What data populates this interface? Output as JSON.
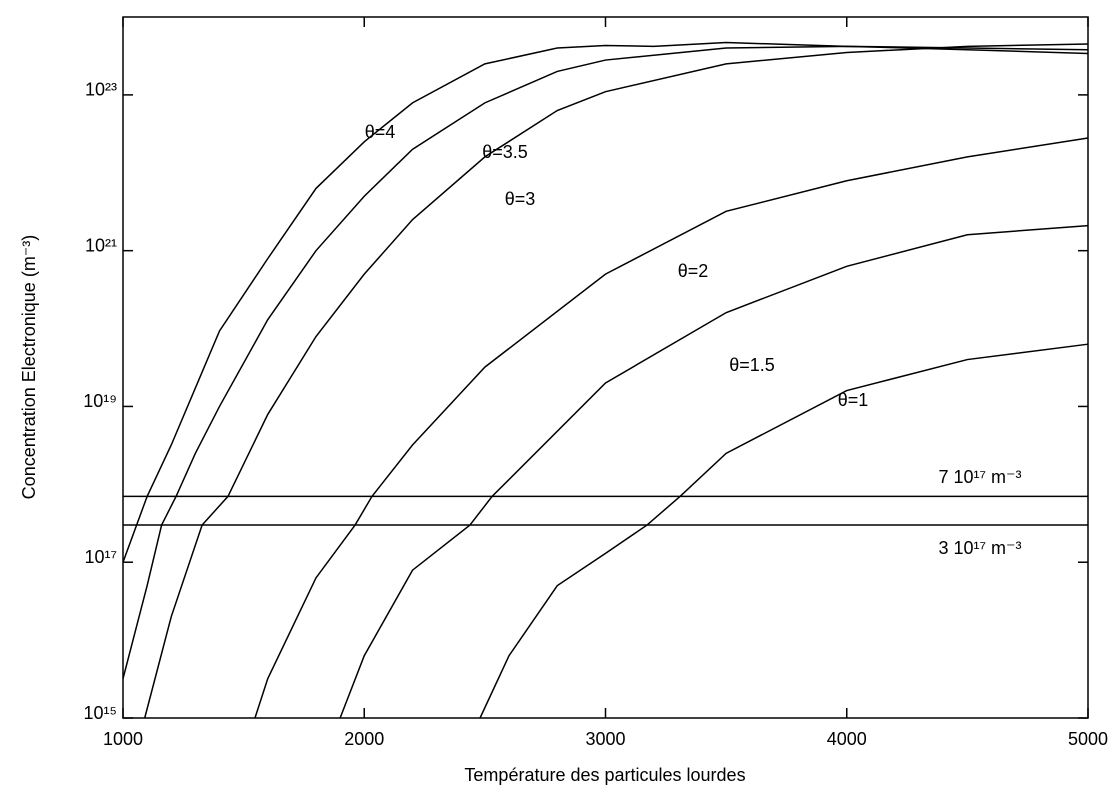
{
  "chart_data": {
    "type": "line",
    "xlabel": "Température des particules lourdes",
    "ylabel": "Concentration Electronique  (m⁻³)",
    "ylog": true,
    "xlim": [
      1000,
      5000
    ],
    "xticks": [
      1000,
      2000,
      3000,
      4000,
      5000
    ],
    "ylim": [
      1000000000000000.0,
      1e+24
    ],
    "yticks": [
      {
        "value": 1000000000000000.0,
        "label": "10¹⁵"
      },
      {
        "value": 1e+17,
        "label": "10¹⁷"
      },
      {
        "value": 1e+19,
        "label": "10¹⁹"
      },
      {
        "value": 1e+21,
        "label": "10²¹"
      },
      {
        "value": 1e+23,
        "label": "10²³"
      }
    ],
    "color": "#000000",
    "series": [
      {
        "name": "θ=4",
        "x": [
          1000,
          1100,
          1200,
          1400,
          1600,
          1800,
          2000,
          2200,
          2500,
          2800,
          3000,
          3200,
          3500,
          4000,
          4500,
          5000
        ],
        "values": [
          1e+17,
          7e+17,
          3.2e+18,
          9.3e+19,
          7.9e+20,
          6.3e+21,
          2.5e+22,
          7.9e+22,
          2.5e+23,
          4e+23,
          4.3e+23,
          4.2e+23,
          4.7e+23,
          4.2e+23,
          3.8e+23,
          3.4e+23
        ]
      },
      {
        "name": "θ=3.5",
        "x": [
          1000,
          1100,
          1160,
          1220,
          1300,
          1400,
          1600,
          1800,
          2000,
          2200,
          2500,
          2800,
          3000,
          3500,
          4000,
          4500,
          5000
        ],
        "values": [
          3200000000000000.0,
          5e+16,
          3e+17,
          7e+17,
          2.5e+18,
          1e+19,
          1.3e+20,
          1e+21,
          5e+21,
          2e+22,
          7.9e+22,
          2e+23,
          2.8e+23,
          4e+23,
          4.2e+23,
          4e+23,
          3.8e+23
        ]
      },
      {
        "name": "θ=3",
        "x": [
          1090,
          1200,
          1328,
          1435,
          1600,
          1800,
          2000,
          2200,
          2500,
          2800,
          3000,
          3500,
          4000,
          4500,
          5000
        ],
        "values": [
          1000000000000000.0,
          2e+16,
          3e+17,
          7e+17,
          7.9e+18,
          7.9e+19,
          5e+20,
          2.5e+21,
          1.6e+22,
          6.3e+22,
          1.1e+23,
          2.5e+23,
          3.5e+23,
          4.2e+23,
          4.5e+23
        ]
      },
      {
        "name": "θ=2",
        "x": [
          1547,
          1600,
          1800,
          1962,
          2032,
          2200,
          2500,
          3000,
          3500,
          4000,
          4500,
          5000
        ],
        "values": [
          1000000000000000.0,
          3200000000000000.0,
          6.3e+16,
          3e+17,
          7e+17,
          3.2e+18,
          3.2e+19,
          5e+20,
          3.2e+21,
          7.9e+21,
          1.6e+22,
          2.8e+22
        ]
      },
      {
        "name": "θ=1.5",
        "x": [
          1900,
          2000,
          2200,
          2438,
          2530,
          3000,
          3500,
          4000,
          4500,
          5000
        ],
        "values": [
          1000000000000000.0,
          6300000000000000.0,
          7.9e+16,
          3e+17,
          7e+17,
          2e+19,
          1.6e+20,
          6.3e+20,
          1.6e+21,
          2.1e+21
        ]
      },
      {
        "name": "θ=1",
        "x": [
          2480,
          2600,
          2800,
          3000,
          3172,
          3309,
          3500,
          4000,
          4500,
          5000
        ],
        "values": [
          1000000000000000.0,
          6300000000000000.0,
          5e+16,
          1.3e+17,
          3e+17,
          7e+17,
          2.5e+18,
          1.6e+19,
          4e+19,
          6.3e+19
        ]
      }
    ],
    "hlines": [
      {
        "value": 7e+17,
        "label": "7 10¹⁷ m⁻³"
      },
      {
        "value": 3e+17,
        "label": "3 10¹⁷ m⁻³"
      }
    ]
  }
}
